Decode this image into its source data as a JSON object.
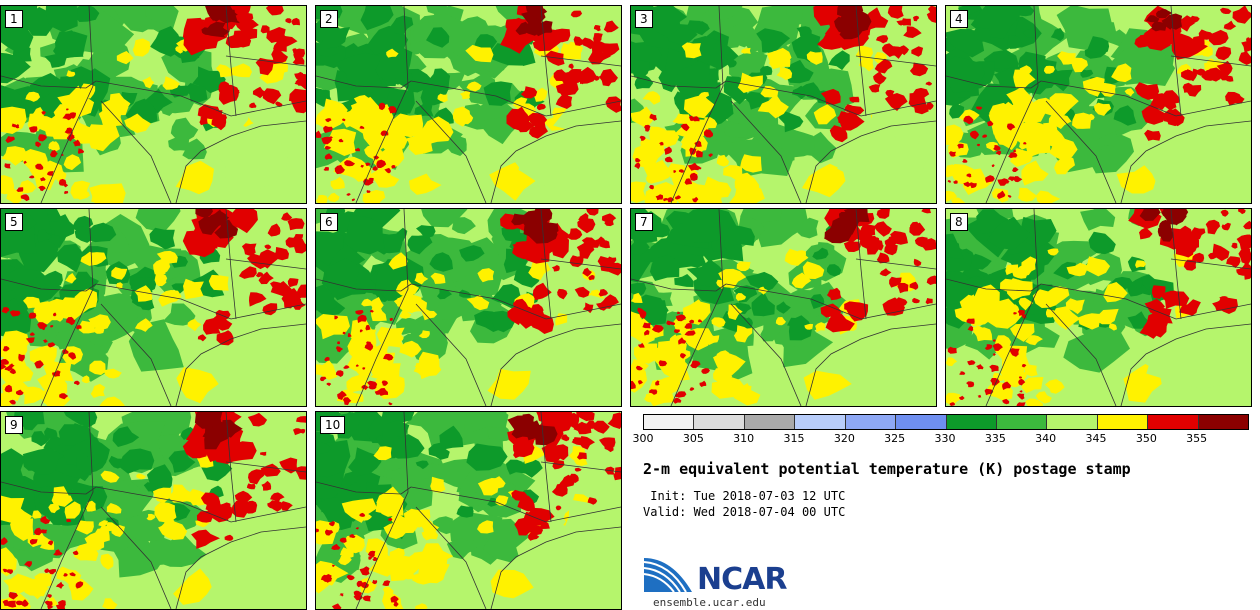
{
  "stamps": [
    {
      "label": "1"
    },
    {
      "label": "2"
    },
    {
      "label": "3"
    },
    {
      "label": "4"
    },
    {
      "label": "5"
    },
    {
      "label": "6"
    },
    {
      "label": "7"
    },
    {
      "label": "8"
    },
    {
      "label": "9"
    },
    {
      "label": "10"
    }
  ],
  "legend": {
    "ticks": [
      "300",
      "305",
      "310",
      "315",
      "320",
      "325",
      "330",
      "335",
      "340",
      "345",
      "350",
      "355"
    ],
    "colors": [
      "#f2f2f2",
      "#dcdcdc",
      "#aaaaaa",
      "#b8cdfa",
      "#8ea8f5",
      "#6f8ff0",
      "#0d9a2a",
      "#3cb93d",
      "#b5f56c",
      "#fff200",
      "#e10000",
      "#8b0000"
    ]
  },
  "title": "2-m equivalent potential temperature (K) postage stamp",
  "init": " Init: Tue 2018-07-03 12 UTC",
  "valid": "Valid: Wed 2018-07-04 00 UTC",
  "logo": {
    "name": "NCAR",
    "url": "ensemble.ucar.edu"
  }
}
